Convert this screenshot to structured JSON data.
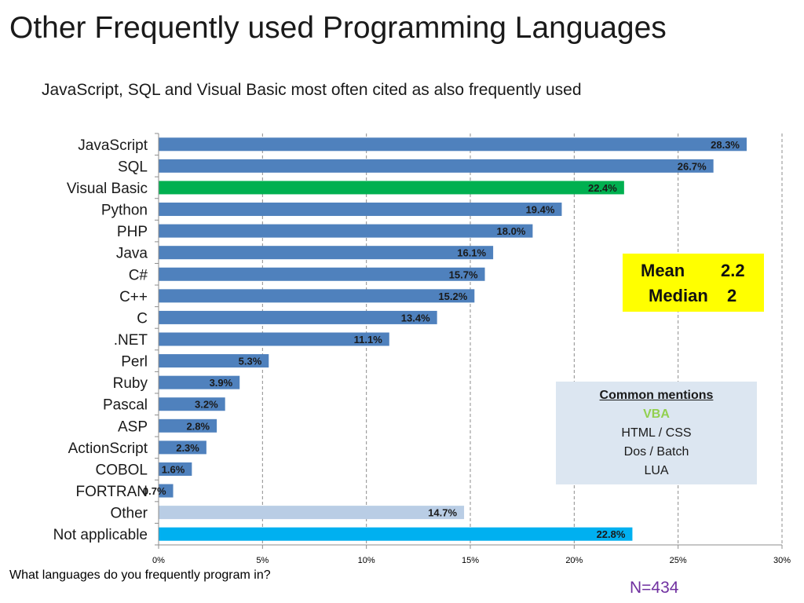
{
  "title": "Other Frequently used Programming Languages",
  "subtitle": "JavaScript, SQL and Visual Basic most often cited as also frequently used",
  "question": "What languages do you frequently program in?",
  "sample_size": "N=434",
  "stats_box": {
    "mean_label": "Mean",
    "mean_value": "2.2",
    "median_label": "Median",
    "median_value": "2",
    "color": "#ffff00"
  },
  "mentions_box": {
    "title": "Common mentions",
    "highlight": "VBA",
    "items": [
      "HTML / CSS",
      "Dos / Batch",
      "LUA"
    ],
    "color": "#dce6f1",
    "highlight_color": "#92d050"
  },
  "chart_data": {
    "type": "bar",
    "orientation": "horizontal",
    "categories": [
      "JavaScript",
      "SQL",
      "Visual Basic",
      "Python",
      "PHP",
      "Java",
      "C#",
      "C++",
      "C",
      ".NET",
      "Perl",
      "Ruby",
      "Pascal",
      "ASP",
      "ActionScript",
      "COBOL",
      "FORTRAN",
      "Other",
      "Not applicable"
    ],
    "values": [
      28.3,
      26.7,
      22.4,
      19.4,
      18.0,
      16.1,
      15.7,
      15.2,
      13.4,
      11.1,
      5.3,
      3.9,
      3.2,
      2.8,
      2.3,
      1.6,
      0.7,
      14.7,
      22.8
    ],
    "data_labels": [
      "28.3%",
      "26.7%",
      "22.4%",
      "19.4%",
      "18.0%",
      "16.1%",
      "15.7%",
      "15.2%",
      "13.4%",
      "11.1%",
      "5.3%",
      "3.9%",
      "3.2%",
      "2.8%",
      "2.3%",
      "1.6%",
      "0.7%",
      "14.7%",
      "22.8%"
    ],
    "colors": [
      "#4f81bd",
      "#4f81bd",
      "#00b050",
      "#4f81bd",
      "#4f81bd",
      "#4f81bd",
      "#4f81bd",
      "#4f81bd",
      "#4f81bd",
      "#4f81bd",
      "#4f81bd",
      "#4f81bd",
      "#4f81bd",
      "#4f81bd",
      "#4f81bd",
      "#4f81bd",
      "#4f81bd",
      "#b9cde5",
      "#00b0f0"
    ],
    "xlim": [
      0,
      30
    ],
    "xticks": [
      0,
      5,
      10,
      15,
      20,
      25,
      30
    ],
    "xtick_labels": [
      "0%",
      "5%",
      "10%",
      "15%",
      "20%",
      "25%",
      "30%"
    ],
    "grid": "vertical dashed",
    "legend": "none"
  }
}
